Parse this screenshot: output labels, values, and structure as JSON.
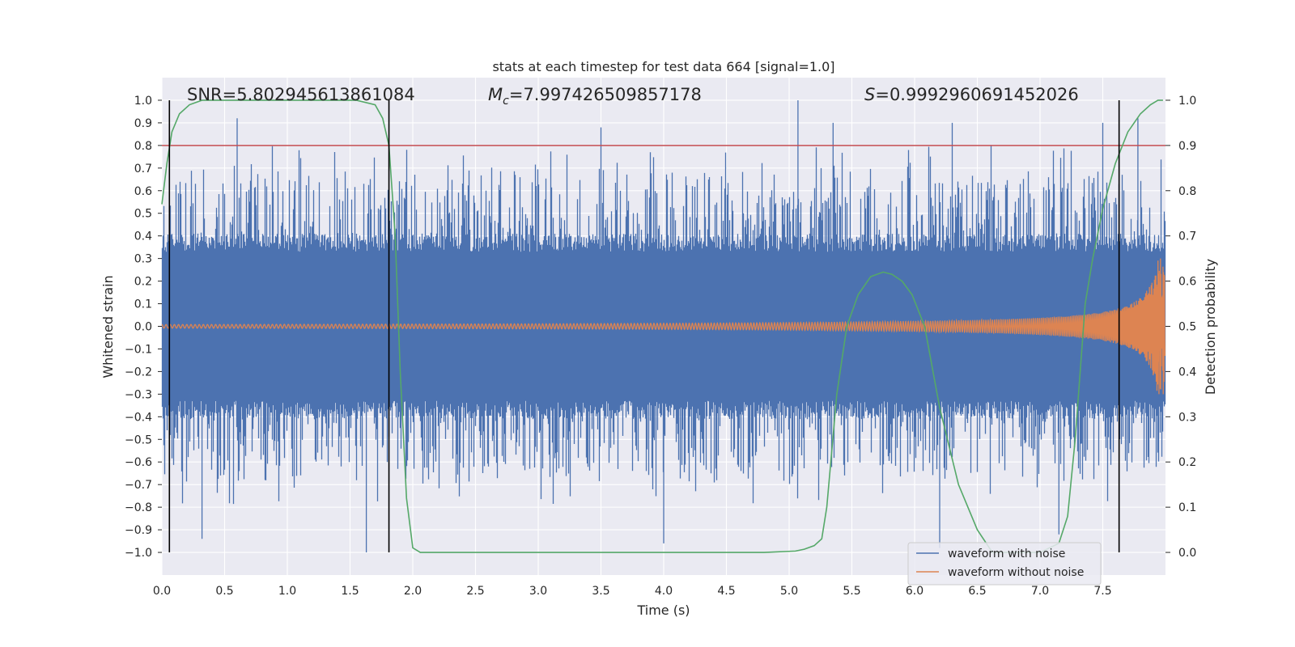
{
  "chart_data": {
    "type": "line",
    "title": "stats at each timestep for test data 664 [signal=1.0]",
    "xlabel": "Time (s)",
    "ylabel": "Whitened strain",
    "y2label": "Detection probability",
    "xlim": [
      0.0,
      8.0
    ],
    "ylim": [
      -1.1,
      1.1
    ],
    "y2lim": [
      -0.05,
      1.05
    ],
    "grid": true,
    "x_ticks": [
      0.0,
      0.5,
      1.0,
      1.5,
      2.0,
      2.5,
      3.0,
      3.5,
      4.0,
      4.5,
      5.0,
      5.5,
      6.0,
      6.5,
      7.0,
      7.5
    ],
    "x_tick_labels": [
      "0.0",
      "0.5",
      "1.0",
      "1.5",
      "2.0",
      "2.5",
      "3.0",
      "3.5",
      "4.0",
      "4.5",
      "5.0",
      "5.5",
      "6.0",
      "6.5",
      "7.0",
      "7.5"
    ],
    "y_ticks": [
      1.0,
      0.9,
      0.8,
      0.7,
      0.6,
      0.5,
      0.4,
      0.3,
      0.2,
      0.1,
      0.0,
      -0.1,
      -0.2,
      -0.3,
      -0.4,
      -0.5,
      -0.6,
      -0.7,
      -0.8,
      -0.9,
      -1.0
    ],
    "y_tick_labels": [
      "1.0",
      "0.9",
      "0.8",
      "0.7",
      "0.6",
      "0.5",
      "0.4",
      "0.3",
      "0.2",
      "0.1",
      "0.0",
      "−0.1",
      "−0.2",
      "−0.3",
      "−0.4",
      "−0.5",
      "−0.6",
      "−0.7",
      "−0.8",
      "−0.9",
      "−1.0"
    ],
    "y2_ticks": [
      1.0,
      0.9,
      0.8,
      0.7,
      0.6,
      0.5,
      0.4,
      0.3,
      0.2,
      0.1,
      0.0
    ],
    "y2_tick_labels": [
      "1.0",
      "0.9",
      "0.8",
      "0.7",
      "0.6",
      "0.5",
      "0.4",
      "0.3",
      "0.2",
      "0.1",
      "0.0"
    ],
    "annotations": [
      {
        "id": "snr",
        "prefix": "SNR=",
        "value": "5.802945613861084",
        "x": 0.2
      },
      {
        "id": "mc",
        "prefix": "M",
        "subscript": "c",
        "value": "=7.997426509857178",
        "x": 2.6
      },
      {
        "id": "s",
        "prefix": "S",
        "value": "=0.9992960691452026",
        "x": 5.6
      }
    ],
    "threshold": {
      "axis": "y2",
      "value": 0.9,
      "color": "#c44e52"
    },
    "detection_markers_x": [
      0.06,
      1.81,
      7.63
    ],
    "series": [
      {
        "name": "waveform with noise",
        "color": "#4c72b0",
        "kind": "noisy_envelope",
        "envelope_core": 0.33,
        "spike_peaks_pos": [
          [
            0.6,
            0.92
          ],
          [
            3.5,
            0.88
          ],
          [
            5.07,
            1.0
          ],
          [
            5.35,
            0.9
          ],
          [
            6.3,
            0.9
          ],
          [
            7.5,
            0.9
          ],
          [
            7.78,
            0.92
          ]
        ],
        "spike_peaks_neg": [
          [
            0.32,
            -0.94
          ],
          [
            1.63,
            -1.0
          ],
          [
            4.0,
            -0.96
          ],
          [
            6.2,
            -0.98
          ],
          [
            7.15,
            -0.92
          ]
        ]
      },
      {
        "name": "waveform without noise",
        "color": "#dd8452",
        "kind": "chirp",
        "start_amplitude": 0.008,
        "end_amplitude": 0.3,
        "merger_time": 8.0
      },
      {
        "name": "detection probability",
        "color": "#55a868",
        "axis": "y2",
        "x": [
          0.0,
          0.04,
          0.08,
          0.14,
          0.22,
          0.32,
          0.45,
          0.7,
          1.0,
          1.3,
          1.55,
          1.7,
          1.76,
          1.81,
          1.86,
          1.9,
          1.95,
          2.0,
          2.06,
          2.2,
          3.0,
          4.0,
          4.8,
          5.05,
          5.12,
          5.2,
          5.26,
          5.3,
          5.38,
          5.46,
          5.55,
          5.65,
          5.75,
          5.82,
          5.9,
          5.98,
          6.08,
          6.2,
          6.35,
          6.5,
          6.62,
          6.8,
          7.0,
          7.15,
          7.22,
          7.28,
          7.32,
          7.36,
          7.42,
          7.5,
          7.6,
          7.7,
          7.8,
          7.88,
          7.94,
          7.98
        ],
        "y": [
          0.77,
          0.86,
          0.93,
          0.97,
          0.99,
          1.0,
          1.0,
          1.0,
          1.0,
          1.0,
          1.0,
          0.99,
          0.96,
          0.9,
          0.7,
          0.4,
          0.12,
          0.01,
          0.0,
          0.0,
          0.0,
          0.0,
          0.0,
          0.003,
          0.007,
          0.015,
          0.03,
          0.1,
          0.35,
          0.5,
          0.57,
          0.61,
          0.62,
          0.615,
          0.6,
          0.57,
          0.5,
          0.32,
          0.15,
          0.05,
          0.0,
          0.0,
          0.0,
          0.02,
          0.08,
          0.25,
          0.4,
          0.55,
          0.65,
          0.76,
          0.86,
          0.93,
          0.97,
          0.99,
          1.0,
          1.0
        ]
      }
    ],
    "legend": {
      "placement": "bottom-right",
      "entries": [
        "waveform with noise",
        "waveform without noise"
      ]
    }
  }
}
